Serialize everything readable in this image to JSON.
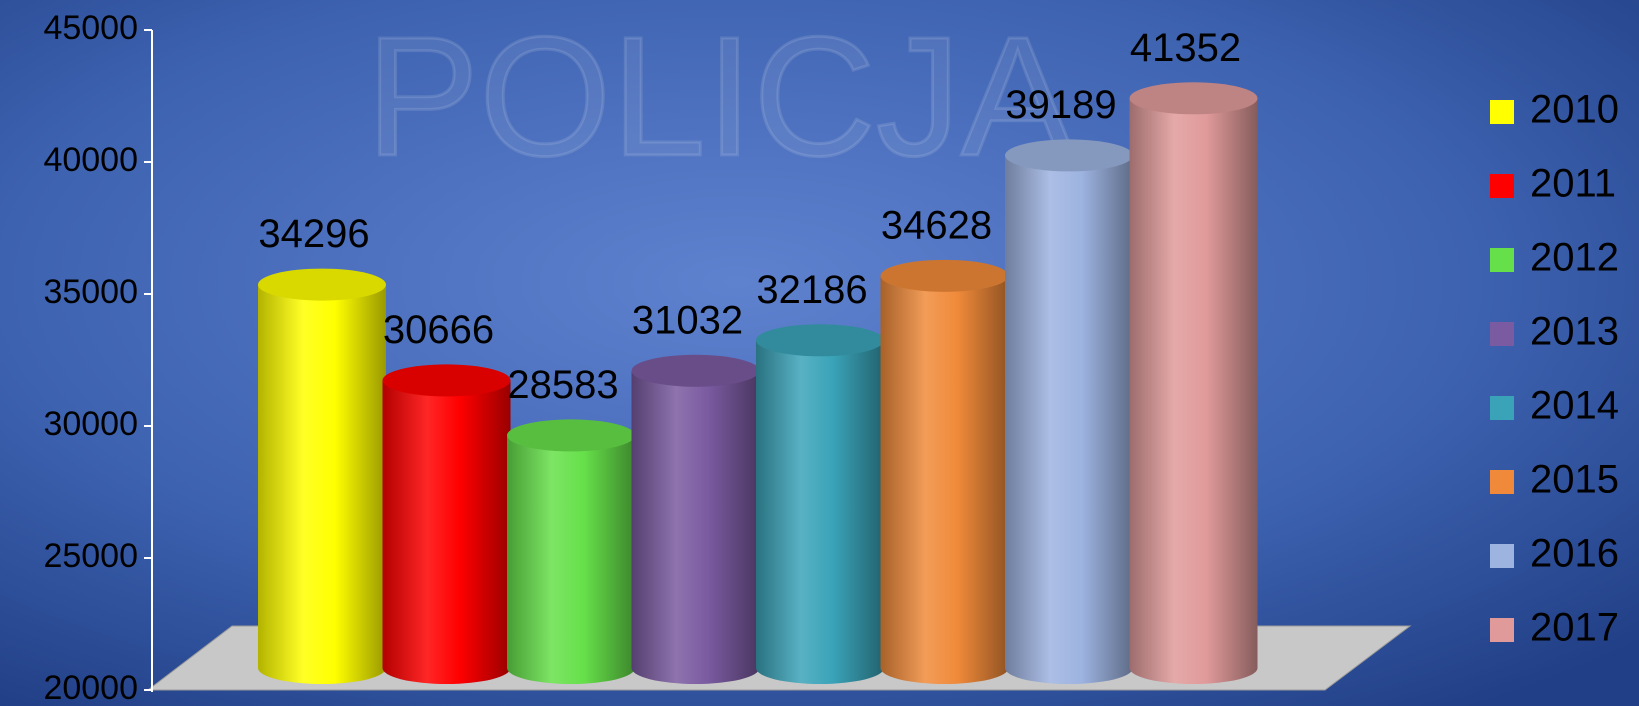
{
  "chart_data": {
    "type": "cylinder-bar",
    "watermark": "POLICJA",
    "series": [
      {
        "name": "2010",
        "color": "#ffff00",
        "values": [
          34296
        ]
      },
      {
        "name": "2011",
        "color": "#ff0000",
        "values": [
          30666
        ]
      },
      {
        "name": "2012",
        "color": "#66e04a",
        "values": [
          28583
        ]
      },
      {
        "name": "2013",
        "color": "#7a5aa0",
        "values": [
          31032
        ]
      },
      {
        "name": "2014",
        "color": "#3aa3b8",
        "values": [
          32186
        ]
      },
      {
        "name": "2015",
        "color": "#f08a3a",
        "values": [
          34628
        ]
      },
      {
        "name": "2016",
        "color": "#9db3e0",
        "values": [
          39189
        ]
      },
      {
        "name": "2017",
        "color": "#e09a9a",
        "values": [
          41352
        ]
      }
    ],
    "ylim": [
      20000,
      45000
    ],
    "yticks": [
      20000,
      25000,
      30000,
      35000,
      40000,
      45000
    ],
    "legend": "right"
  }
}
